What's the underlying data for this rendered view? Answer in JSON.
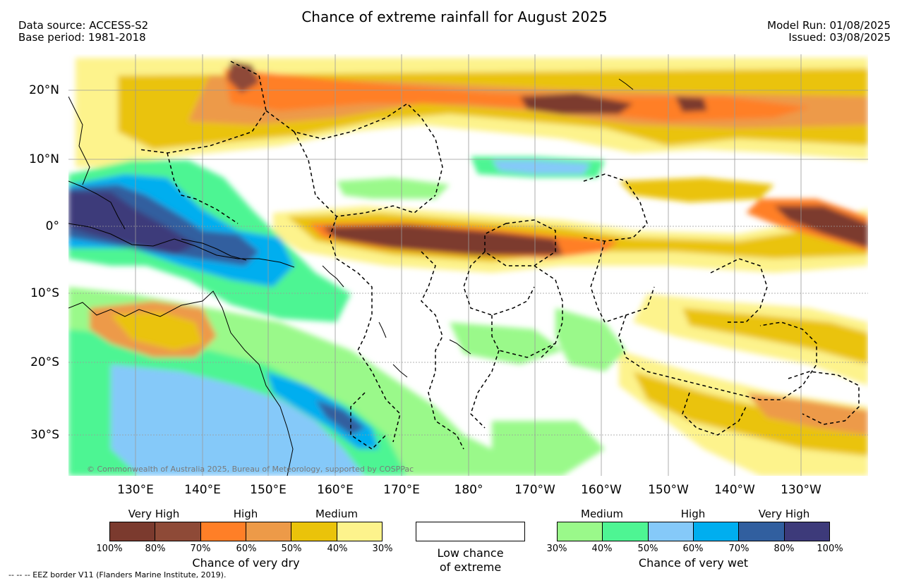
{
  "header": {
    "title": "Chance of extreme rainfall for August 2025",
    "data_source": "Data source: ACCESS-S2",
    "base_period": "Base period: 1981-2018",
    "model_run": "Model Run: 01/08/2025",
    "issued": "Issued: 03/08/2025"
  },
  "axes": {
    "lat_labels": [
      "20°N",
      "10°N",
      "0°",
      "10°S",
      "20°S",
      "30°S"
    ],
    "lon_labels": [
      "130°E",
      "140°E",
      "150°E",
      "160°E",
      "170°E",
      "180°",
      "170°W",
      "160°W",
      "150°W",
      "140°W",
      "130°W"
    ]
  },
  "map": {
    "copyright": "© Commonwealth of Australia 2025, Bureau of Meteorology, supported by COSPPac"
  },
  "legend": {
    "dry": {
      "categories": [
        "Very High",
        "High",
        "Medium"
      ],
      "ticks": [
        "100%",
        "80%",
        "70%",
        "60%",
        "50%",
        "40%",
        "30%"
      ],
      "colors": [
        "#7b3a2e",
        "#8e4a37",
        "#ff7f27",
        "#ed9a48",
        "#eac30a",
        "#fdf38c"
      ],
      "title": "Chance of very dry"
    },
    "low": {
      "line1": "Low chance",
      "line2": "of extreme"
    },
    "wet": {
      "categories": [
        "Medium",
        "High",
        "Very High"
      ],
      "ticks": [
        "30%",
        "40%",
        "50%",
        "60%",
        "70%",
        "80%",
        "100%"
      ],
      "colors": [
        "#9af98a",
        "#4ef593",
        "#85c9f9",
        "#00aeef",
        "#315f9f",
        "#3d3a7a"
      ],
      "title": "Chance of very wet"
    }
  },
  "footer": {
    "note": "--  --  -- EEZ border V11 (Flanders Marine Institute, 2019)."
  }
}
